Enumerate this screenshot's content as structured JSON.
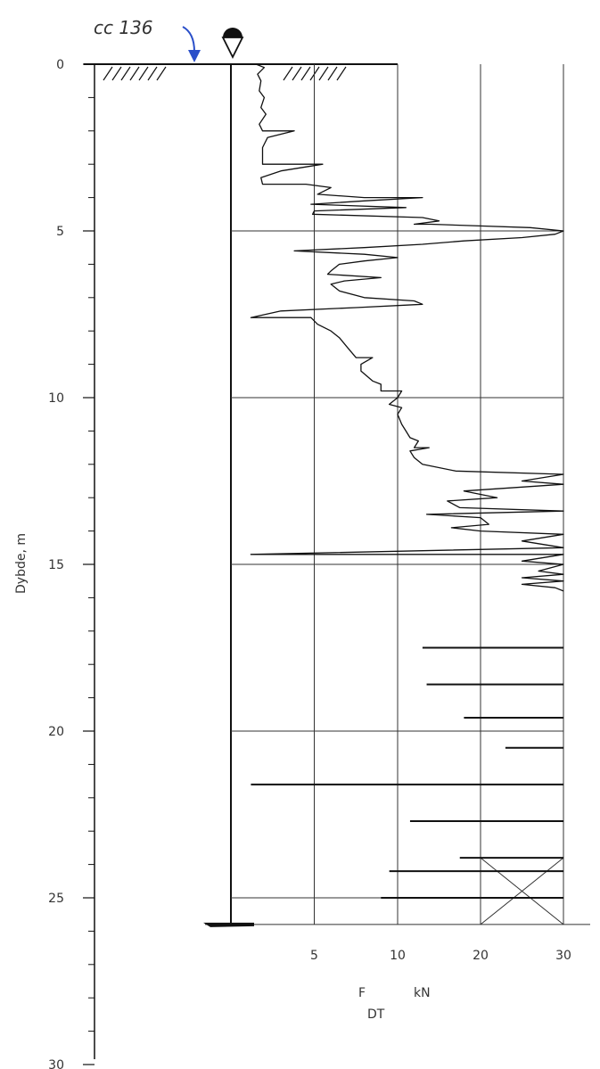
{
  "chart_data": {
    "type": "line",
    "title": "",
    "annotation": "cc 136",
    "ylabel": "Dybde, m",
    "y_ticks": [
      "0",
      "5",
      "10",
      "15",
      "20",
      "25",
      "30"
    ],
    "ylim": [
      0,
      30
    ],
    "x_ticks": [
      "5",
      "10",
      "20",
      "30"
    ],
    "xlabel_main": "F",
    "xlabel_sub": "DT",
    "xlabel_unit": "kN",
    "x_scale": "piecewise: 0-10 kN over two equal segments, 10-30 kN over two equal segments",
    "grid": true,
    "grid_depths": [
      5,
      10,
      15,
      20,
      25
    ],
    "ground_level_depth": 0,
    "end_depth": 25.8,
    "overrun_marks": [
      {
        "from": [
          20,
          23.8
        ],
        "to": [
          30,
          25.8
        ]
      },
      {
        "from": [
          20,
          25.8
        ],
        "to": [
          30,
          23.8
        ]
      }
    ],
    "series": [
      {
        "values": [
          [
            1.5,
            0.0
          ],
          [
            2.0,
            0.1
          ],
          [
            1.6,
            0.3
          ],
          [
            1.8,
            0.5
          ],
          [
            1.7,
            0.8
          ],
          [
            2.0,
            1.0
          ],
          [
            1.8,
            1.3
          ],
          [
            2.1,
            1.5
          ],
          [
            1.7,
            1.8
          ],
          [
            1.9,
            2.0
          ],
          [
            3.8,
            2.0
          ],
          [
            2.2,
            2.2
          ],
          [
            1.9,
            2.5
          ],
          [
            1.9,
            3.0
          ],
          [
            5.5,
            3.0
          ],
          [
            3.0,
            3.2
          ],
          [
            1.8,
            3.4
          ],
          [
            1.9,
            3.6
          ],
          [
            4.5,
            3.6
          ],
          [
            6.0,
            3.7
          ],
          [
            5.2,
            3.9
          ],
          [
            8.0,
            4.0
          ],
          [
            13.0,
            4.0
          ],
          [
            8.0,
            4.1
          ],
          [
            4.8,
            4.2
          ],
          [
            11.0,
            4.3
          ],
          [
            5.0,
            4.4
          ],
          [
            4.9,
            4.5
          ],
          [
            13.0,
            4.6
          ],
          [
            15.0,
            4.7
          ],
          [
            12.0,
            4.8
          ],
          [
            14.0,
            4.8
          ],
          [
            26.0,
            4.9
          ],
          [
            30.0,
            5.0
          ],
          [
            29.0,
            5.1
          ],
          [
            25.0,
            5.2
          ],
          [
            18.0,
            5.3
          ],
          [
            13.0,
            5.4
          ],
          [
            8.0,
            5.5
          ],
          [
            3.8,
            5.6
          ],
          [
            8.0,
            5.7
          ],
          [
            10.0,
            5.8
          ],
          [
            8.0,
            5.9
          ],
          [
            6.5,
            6.0
          ],
          [
            6.0,
            6.2
          ],
          [
            5.8,
            6.3
          ],
          [
            9.0,
            6.4
          ],
          [
            6.8,
            6.5
          ],
          [
            6.0,
            6.6
          ],
          [
            6.5,
            6.8
          ],
          [
            8.0,
            7.0
          ],
          [
            12.0,
            7.1
          ],
          [
            13.0,
            7.2
          ],
          [
            7.5,
            7.3
          ],
          [
            3.0,
            7.4
          ],
          [
            1.2,
            7.6
          ],
          [
            4.8,
            7.6
          ],
          [
            5.2,
            7.8
          ],
          [
            6.0,
            8.0
          ],
          [
            6.5,
            8.2
          ],
          [
            7.0,
            8.5
          ],
          [
            7.5,
            8.8
          ],
          [
            8.5,
            8.8
          ],
          [
            7.8,
            9.0
          ],
          [
            7.8,
            9.2
          ],
          [
            8.5,
            9.5
          ],
          [
            9.0,
            9.6
          ],
          [
            9.0,
            9.8
          ],
          [
            10.5,
            9.8
          ],
          [
            10.0,
            10.0
          ],
          [
            9.5,
            10.2
          ],
          [
            10.5,
            10.3
          ],
          [
            10.0,
            10.5
          ],
          [
            10.5,
            10.8
          ],
          [
            11.0,
            11.0
          ],
          [
            11.5,
            11.2
          ],
          [
            12.5,
            11.3
          ],
          [
            12.0,
            11.5
          ],
          [
            13.8,
            11.5
          ],
          [
            11.5,
            11.6
          ],
          [
            12.0,
            11.8
          ],
          [
            13.0,
            12.0
          ],
          [
            17.0,
            12.2
          ],
          [
            30.0,
            12.3
          ],
          [
            25.0,
            12.5
          ],
          [
            30.0,
            12.6
          ],
          [
            18.0,
            12.8
          ],
          [
            22.0,
            13.0
          ],
          [
            16.0,
            13.1
          ],
          [
            17.5,
            13.3
          ],
          [
            30.0,
            13.4
          ],
          [
            13.5,
            13.5
          ],
          [
            20.0,
            13.6
          ],
          [
            21.0,
            13.8
          ],
          [
            16.5,
            13.9
          ],
          [
            20.0,
            14.0
          ],
          [
            30.0,
            14.1
          ],
          [
            25.0,
            14.3
          ],
          [
            30.0,
            14.5
          ],
          [
            1.2,
            14.7
          ],
          [
            30.0,
            14.7
          ],
          [
            25.0,
            14.9
          ],
          [
            30.0,
            15.0
          ],
          [
            27.0,
            15.2
          ],
          [
            30.0,
            15.3
          ],
          [
            25.0,
            15.4
          ],
          [
            30.0,
            15.5
          ],
          [
            25.0,
            15.6
          ],
          [
            29.0,
            15.7
          ],
          [
            30.0,
            15.8
          ]
        ]
      }
    ],
    "spikes": [
      {
        "depth": 17.5,
        "min": 13.0
      },
      {
        "depth": 18.6,
        "min": 13.5
      },
      {
        "depth": 19.6,
        "min": 18.0
      },
      {
        "depth": 20.5,
        "min": 23.0
      },
      {
        "depth": 21.6,
        "min": 1.2
      },
      {
        "depth": 22.7,
        "min": 11.5
      },
      {
        "depth": 23.8,
        "min": 17.5
      },
      {
        "depth": 24.2,
        "min": 9.5
      },
      {
        "depth": 25.0,
        "min": 9.0
      }
    ]
  }
}
